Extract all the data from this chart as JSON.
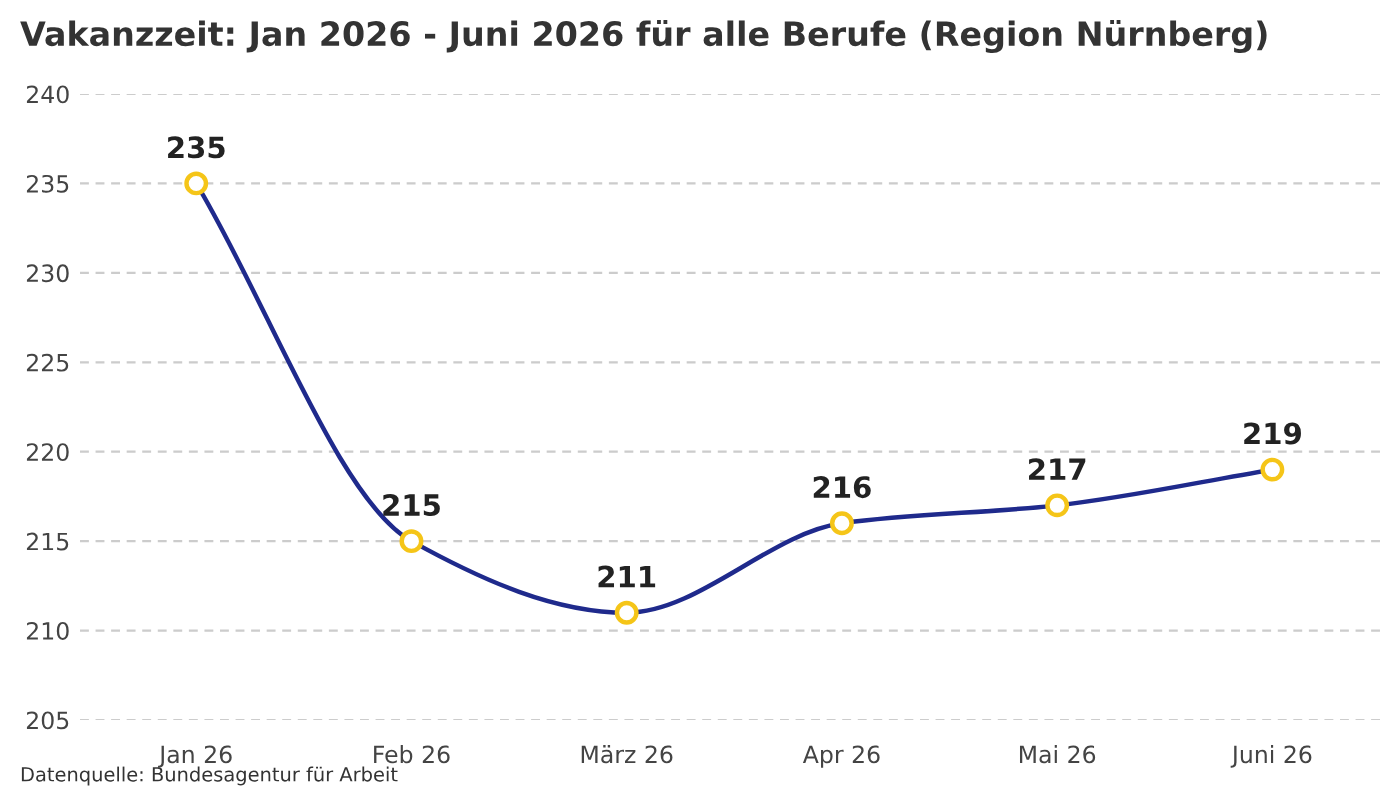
{
  "chart_data": {
    "type": "line",
    "title": "Vakanzzeit: Jan 2026 - Juni 2026 für alle Berufe (Region Nürnberg)",
    "categories": [
      "Jan 26",
      "Feb 26",
      "März 26",
      "Apr 26",
      "Mai 26",
      "Juni 26"
    ],
    "series": [
      {
        "color": "#1f2a8c",
        "values": [
          235,
          215,
          211,
          216,
          217,
          219
        ]
      }
    ],
    "ylim": [
      205,
      240
    ],
    "yticks": [
      205,
      210,
      215,
      220,
      225,
      230,
      235,
      240
    ],
    "grid": "y",
    "marker": "circle",
    "line_style": "solid",
    "data_labels": true,
    "legend": false,
    "annotations": [
      "Datenquelle: Bundesagentur für Arbeit"
    ]
  }
}
